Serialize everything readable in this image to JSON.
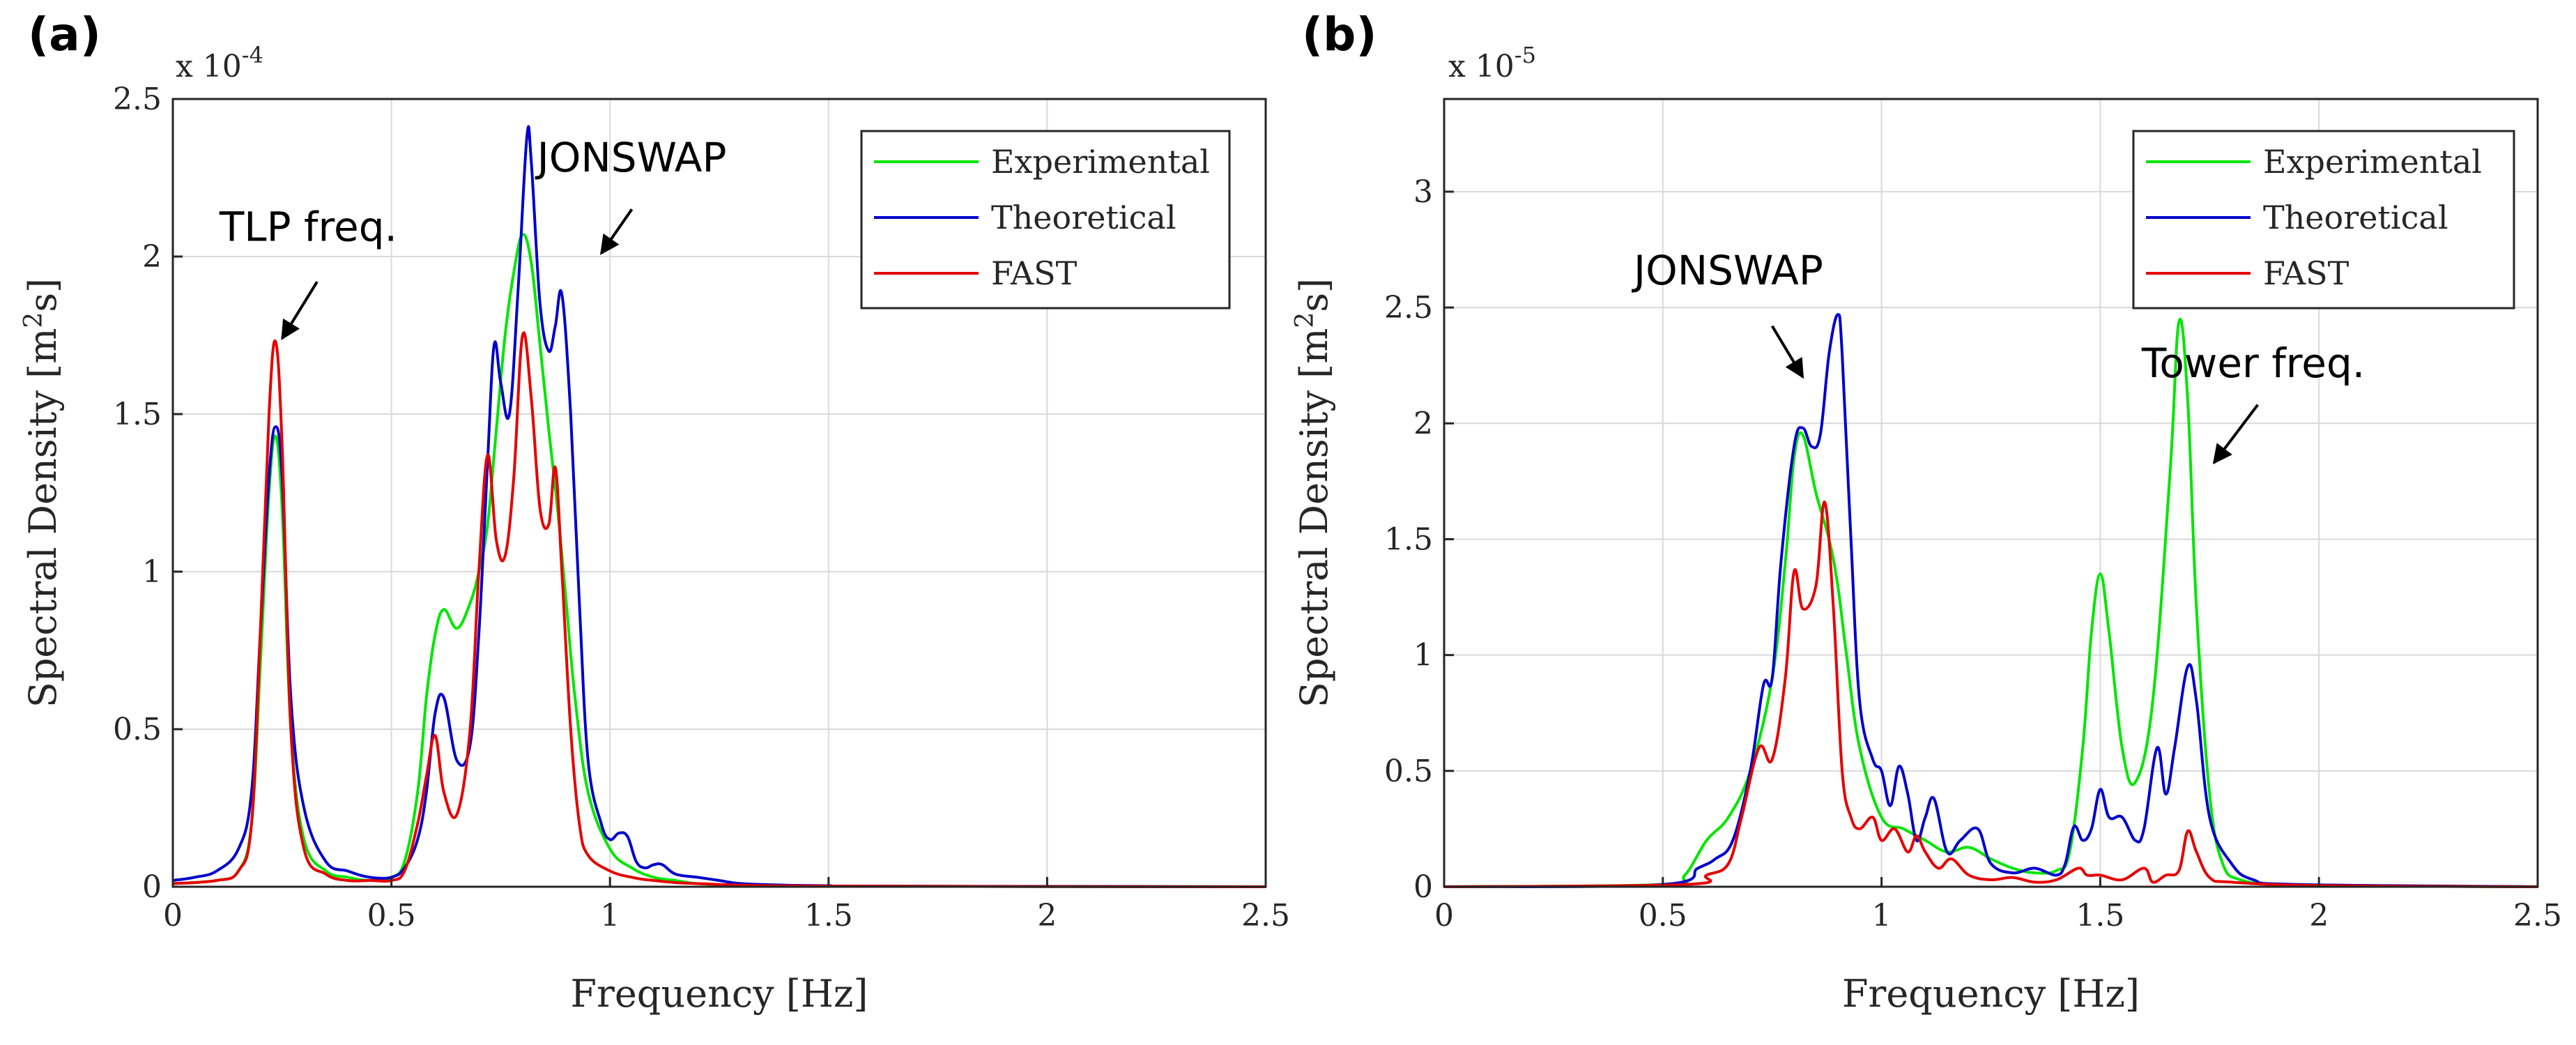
{
  "chart_data": [
    {
      "panel_label": "(a)",
      "type": "line",
      "xlabel": "Frequency [Hz]",
      "ylabel": "Spectral Density [m²s]",
      "ylabel_main": "Spectral Density [m",
      "ylabel_sup": "2",
      "ylabel_end": "s]",
      "multiplier_base": "x 10",
      "multiplier_exp": "-4",
      "xlim": [
        0,
        2.5
      ],
      "ylim": [
        0,
        2.5
      ],
      "xticks": [
        0,
        0.5,
        1,
        1.5,
        2,
        2.5
      ],
      "xtick_labels": [
        "0",
        "0.5",
        "1",
        "1.5",
        "2",
        "2.5"
      ],
      "yticks": [
        0,
        0.5,
        1,
        1.5,
        2,
        2.5
      ],
      "ytick_labels": [
        "0",
        "0.5",
        "1",
        "1.5",
        "2",
        "2.5"
      ],
      "grid": true,
      "legend_position": "top-right",
      "annotations": [
        {
          "text": "TLP freq.",
          "text_x": 0.31,
          "text_y": 2.05,
          "arrow_from": [
            0.33,
            1.92
          ],
          "arrow_to": [
            0.25,
            1.74
          ]
        },
        {
          "text": "JONSWAP",
          "text_x": 1.05,
          "text_y": 2.27,
          "arrow_from": [
            1.05,
            2.15
          ],
          "arrow_to": [
            0.98,
            2.01
          ]
        }
      ],
      "series": [
        {
          "name": "Experimental",
          "color": "#00e600",
          "x": [
            0,
            0.1,
            0.15,
            0.18,
            0.2,
            0.22,
            0.235,
            0.25,
            0.27,
            0.3,
            0.35,
            0.4,
            0.45,
            0.5,
            0.53,
            0.56,
            0.58,
            0.6,
            0.62,
            0.65,
            0.68,
            0.7,
            0.72,
            0.74,
            0.76,
            0.78,
            0.8,
            0.82,
            0.84,
            0.86,
            0.88,
            0.9,
            0.92,
            0.95,
            1.0,
            1.05,
            1.1,
            1.15,
            1.2,
            1.3,
            1.5,
            2.5
          ],
          "y": [
            0.01,
            0.02,
            0.05,
            0.2,
            0.7,
            1.25,
            1.43,
            1.2,
            0.5,
            0.15,
            0.05,
            0.03,
            0.02,
            0.03,
            0.08,
            0.3,
            0.6,
            0.8,
            0.88,
            0.82,
            0.9,
            1.0,
            1.15,
            1.45,
            1.75,
            1.95,
            2.07,
            1.98,
            1.72,
            1.45,
            1.2,
            0.9,
            0.6,
            0.3,
            0.12,
            0.06,
            0.03,
            0.02,
            0.01,
            0.005,
            0.002,
            0
          ]
        },
        {
          "name": "Theoretical",
          "color": "#0000cc",
          "x": [
            0,
            0.05,
            0.1,
            0.15,
            0.18,
            0.2,
            0.22,
            0.235,
            0.25,
            0.27,
            0.3,
            0.35,
            0.4,
            0.45,
            0.5,
            0.53,
            0.56,
            0.58,
            0.6,
            0.62,
            0.65,
            0.68,
            0.7,
            0.72,
            0.735,
            0.75,
            0.77,
            0.79,
            0.81,
            0.82,
            0.84,
            0.86,
            0.875,
            0.89,
            0.91,
            0.93,
            0.95,
            0.98,
            1.0,
            1.02,
            1.04,
            1.06,
            1.08,
            1.1,
            1.12,
            1.15,
            1.2,
            1.25,
            1.3,
            1.4,
            1.5,
            1.6,
            2.5
          ],
          "y": [
            0.02,
            0.03,
            0.05,
            0.12,
            0.3,
            0.8,
            1.3,
            1.46,
            1.3,
            0.6,
            0.25,
            0.08,
            0.05,
            0.03,
            0.03,
            0.06,
            0.15,
            0.3,
            0.55,
            0.6,
            0.4,
            0.45,
            0.8,
            1.35,
            1.72,
            1.6,
            1.5,
            1.9,
            2.38,
            2.3,
            1.85,
            1.7,
            1.78,
            1.88,
            1.5,
            0.9,
            0.4,
            0.2,
            0.15,
            0.17,
            0.16,
            0.08,
            0.06,
            0.07,
            0.07,
            0.04,
            0.03,
            0.02,
            0.01,
            0.005,
            0.003,
            0.002,
            0
          ]
        },
        {
          "name": "FAST",
          "color": "#e60000",
          "x": [
            0,
            0.1,
            0.15,
            0.18,
            0.2,
            0.22,
            0.235,
            0.25,
            0.27,
            0.3,
            0.35,
            0.4,
            0.45,
            0.5,
            0.53,
            0.56,
            0.58,
            0.6,
            0.62,
            0.65,
            0.68,
            0.7,
            0.72,
            0.74,
            0.76,
            0.78,
            0.8,
            0.82,
            0.84,
            0.86,
            0.875,
            0.89,
            0.91,
            0.93,
            0.95,
            1.0,
            1.05,
            1.1,
            1.2,
            1.5,
            2.5
          ],
          "y": [
            0.01,
            0.02,
            0.05,
            0.2,
            0.8,
            1.5,
            1.73,
            1.4,
            0.5,
            0.12,
            0.04,
            0.02,
            0.02,
            0.02,
            0.05,
            0.2,
            0.35,
            0.48,
            0.3,
            0.23,
            0.5,
            1.0,
            1.37,
            1.1,
            1.05,
            1.3,
            1.75,
            1.55,
            1.2,
            1.15,
            1.33,
            1.0,
            0.5,
            0.2,
            0.1,
            0.05,
            0.03,
            0.02,
            0.01,
            0.002,
            0
          ]
        }
      ]
    },
    {
      "panel_label": "(b)",
      "type": "line",
      "xlabel": "Frequency [Hz]",
      "ylabel": "Spectral Density [m²s]",
      "ylabel_main": "Spectral Density [m",
      "ylabel_sup": "2",
      "ylabel_end": "s]",
      "multiplier_base": "x 10",
      "multiplier_exp": "-5",
      "xlim": [
        0,
        2.5
      ],
      "ylim": [
        0,
        3.4
      ],
      "xticks": [
        0,
        0.5,
        1,
        1.5,
        2,
        2.5
      ],
      "xtick_labels": [
        "0",
        "0.5",
        "1",
        "1.5",
        "2",
        "2.5"
      ],
      "yticks": [
        0,
        0.5,
        1,
        1.5,
        2,
        2.5,
        3
      ],
      "ytick_labels": [
        "0",
        "0.5",
        "1",
        "1.5",
        "2",
        "2.5",
        "3"
      ],
      "grid": true,
      "legend_position": "top-right",
      "annotations": [
        {
          "text": "JONSWAP",
          "text_x": 0.65,
          "text_y": 2.6,
          "arrow_from": [
            0.75,
            2.42
          ],
          "arrow_to": [
            0.82,
            2.2
          ]
        },
        {
          "text": "Tower freq.",
          "text_x": 1.85,
          "text_y": 2.2,
          "arrow_from": [
            1.86,
            2.08
          ],
          "arrow_to": [
            1.76,
            1.83
          ]
        }
      ],
      "series": [
        {
          "name": "Experimental",
          "color": "#00e600",
          "x": [
            0,
            0.5,
            0.55,
            0.6,
            0.65,
            0.7,
            0.75,
            0.78,
            0.8,
            0.82,
            0.85,
            0.88,
            0.9,
            0.92,
            0.95,
            1.0,
            1.05,
            1.1,
            1.15,
            1.2,
            1.25,
            1.3,
            1.35,
            1.4,
            1.43,
            1.46,
            1.48,
            1.5,
            1.52,
            1.55,
            1.58,
            1.62,
            1.66,
            1.68,
            1.7,
            1.72,
            1.75,
            1.78,
            1.82,
            1.9,
            2.0,
            2.5
          ],
          "y": [
            0,
            0.01,
            0.05,
            0.2,
            0.3,
            0.5,
            0.9,
            1.4,
            1.85,
            1.95,
            1.7,
            1.5,
            1.3,
            1.0,
            0.6,
            0.3,
            0.25,
            0.2,
            0.15,
            0.17,
            0.12,
            0.08,
            0.06,
            0.07,
            0.15,
            0.6,
            1.1,
            1.35,
            1.1,
            0.6,
            0.45,
            0.8,
            1.8,
            2.44,
            2.1,
            1.2,
            0.4,
            0.1,
            0.03,
            0.01,
            0.005,
            0
          ]
        },
        {
          "name": "Theoretical",
          "color": "#0000cc",
          "x": [
            0,
            0.5,
            0.58,
            0.62,
            0.66,
            0.7,
            0.73,
            0.75,
            0.77,
            0.8,
            0.82,
            0.84,
            0.86,
            0.88,
            0.9,
            0.91,
            0.93,
            0.95,
            0.98,
            1.0,
            1.02,
            1.04,
            1.06,
            1.08,
            1.1,
            1.12,
            1.15,
            1.18,
            1.22,
            1.25,
            1.3,
            1.35,
            1.4,
            1.42,
            1.44,
            1.46,
            1.48,
            1.5,
            1.52,
            1.55,
            1.58,
            1.6,
            1.63,
            1.65,
            1.67,
            1.7,
            1.72,
            1.75,
            1.8,
            1.85,
            1.95,
            2.5
          ],
          "y": [
            0,
            0.01,
            0.08,
            0.12,
            0.2,
            0.5,
            0.87,
            0.9,
            1.4,
            1.9,
            1.98,
            1.9,
            1.95,
            2.3,
            2.47,
            2.3,
            1.5,
            0.8,
            0.55,
            0.5,
            0.35,
            0.52,
            0.4,
            0.2,
            0.3,
            0.38,
            0.15,
            0.2,
            0.25,
            0.1,
            0.06,
            0.08,
            0.05,
            0.1,
            0.26,
            0.2,
            0.25,
            0.42,
            0.3,
            0.3,
            0.2,
            0.25,
            0.6,
            0.4,
            0.6,
            0.95,
            0.8,
            0.3,
            0.1,
            0.03,
            0.01,
            0
          ]
        },
        {
          "name": "FAST",
          "color": "#e60000",
          "x": [
            0,
            0.55,
            0.6,
            0.65,
            0.68,
            0.72,
            0.75,
            0.78,
            0.8,
            0.82,
            0.85,
            0.87,
            0.89,
            0.91,
            0.93,
            0.95,
            0.98,
            1.0,
            1.03,
            1.06,
            1.08,
            1.1,
            1.13,
            1.16,
            1.2,
            1.25,
            1.3,
            1.35,
            1.4,
            1.45,
            1.47,
            1.5,
            1.55,
            1.6,
            1.62,
            1.65,
            1.68,
            1.7,
            1.72,
            1.75,
            1.8,
            2.0,
            2.5
          ],
          "y": [
            0,
            0.01,
            0.05,
            0.1,
            0.3,
            0.6,
            0.55,
            0.9,
            1.36,
            1.2,
            1.3,
            1.66,
            1.2,
            0.5,
            0.3,
            0.25,
            0.3,
            0.2,
            0.25,
            0.15,
            0.22,
            0.15,
            0.08,
            0.12,
            0.05,
            0.03,
            0.04,
            0.02,
            0.03,
            0.08,
            0.05,
            0.05,
            0.03,
            0.08,
            0.02,
            0.05,
            0.07,
            0.24,
            0.15,
            0.04,
            0.02,
            0.005,
            0
          ]
        }
      ]
    }
  ]
}
